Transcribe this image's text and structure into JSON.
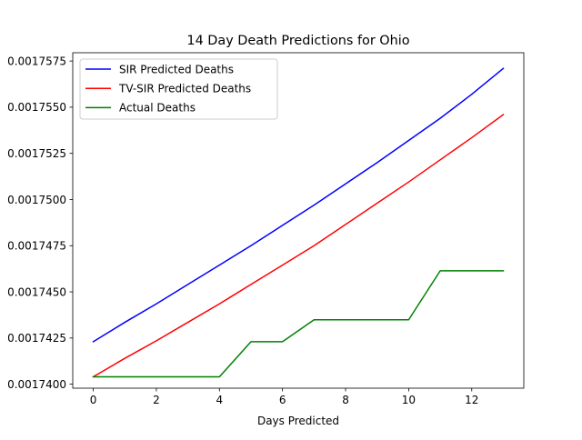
{
  "chart_data": {
    "type": "line",
    "title": "14 Day Death Predictions for Ohio",
    "xlabel": "Days Predicted",
    "ylabel": "",
    "x": [
      0,
      1,
      2,
      3,
      4,
      5,
      6,
      7,
      8,
      9,
      10,
      11,
      12,
      13
    ],
    "xlim": [
      -0.65,
      13.65
    ],
    "ylim": [
      0.001739784,
      0.00175795
    ],
    "xticks": [
      0,
      2,
      4,
      6,
      8,
      10,
      12
    ],
    "xtick_labels": [
      "0",
      "2",
      "4",
      "6",
      "8",
      "10",
      "12"
    ],
    "yticks": [
      0.00174,
      0.0017425,
      0.001745,
      0.0017475,
      0.00175,
      0.0017525,
      0.001755,
      0.0017575
    ],
    "ytick_labels": [
      "0.0017400",
      "0.0017425",
      "0.0017450",
      "0.0017475",
      "0.0017500",
      "0.0017525",
      "0.0017550",
      "0.0017575"
    ],
    "grid": false,
    "legend_position": "upper-left",
    "series": [
      {
        "name": "SIR Predicted Deaths",
        "color": "#0000ff",
        "values": [
          0.0017423,
          0.00174335,
          0.00174435,
          0.0017454,
          0.00174645,
          0.0017475,
          0.0017486,
          0.0017497,
          0.00175085,
          0.001752,
          0.0017532,
          0.0017544,
          0.0017557,
          0.0017571
        ]
      },
      {
        "name": "TV-SIR Predicted Deaths",
        "color": "#ff0000",
        "values": [
          0.0017404,
          0.0017414,
          0.00174235,
          0.00174335,
          0.00174435,
          0.0017454,
          0.00174645,
          0.0017475,
          0.00174865,
          0.0017498,
          0.00175095,
          0.00175215,
          0.00175335,
          0.0017546
        ]
      },
      {
        "name": "Actual Deaths",
        "color": "#008000",
        "values": [
          0.0017404,
          0.0017404,
          0.0017404,
          0.0017404,
          0.0017404,
          0.0017423,
          0.0017423,
          0.00174349,
          0.00174349,
          0.00174349,
          0.00174349,
          0.00174614,
          0.00174614,
          0.00174614
        ]
      }
    ]
  }
}
